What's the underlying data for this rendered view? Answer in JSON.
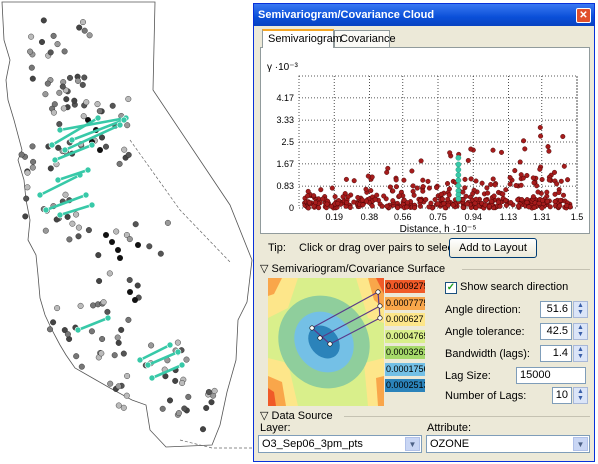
{
  "window": {
    "title": "Semivariogram/Covariance Cloud",
    "close_glyph": "✕",
    "tabs": [
      {
        "label": "Semivariogram",
        "active": true
      },
      {
        "label": "Covariance",
        "active": false
      }
    ]
  },
  "chart_data": {
    "type": "scatter",
    "ylabel": "γ ·10⁻³",
    "xlabel": "Distance, h ·10⁻⁵",
    "y_ticks": [
      "4.17",
      "3.33",
      "2.5",
      "1.67",
      "0.83",
      "0"
    ],
    "x_ticks": [
      "0.19",
      "0.38",
      "0.56",
      "0.75",
      "0.94",
      "1.13",
      "1.31",
      "1.5"
    ],
    "xlim": [
      0,
      1.5
    ],
    "ylim": [
      0,
      5
    ],
    "grid": true,
    "colors": {
      "points": "#a61c1c",
      "selected": "#38c9a8"
    },
    "selected_points": [
      {
        "x": 0.86,
        "y": 1.9
      },
      {
        "x": 0.86,
        "y": 1.65
      },
      {
        "x": 0.86,
        "y": 1.45
      },
      {
        "x": 0.86,
        "y": 1.25
      },
      {
        "x": 0.86,
        "y": 1.05
      },
      {
        "x": 0.86,
        "y": 0.85
      },
      {
        "x": 0.86,
        "y": 0.65
      },
      {
        "x": 0.86,
        "y": 0.5
      },
      {
        "x": 0.86,
        "y": 0.35
      }
    ]
  },
  "tip": {
    "label": "Tip:",
    "text": "Click or drag over pairs to select",
    "button": "Add to Layout"
  },
  "surface": {
    "section_title": "Semivariogram/Covariance Surface",
    "legend": [
      "0.0009279",
      "0.0007775",
      "0.000627",
      "0.0004765",
      "0.0003261",
      "0.0001756",
      "0.0002513"
    ],
    "legend_colors": [
      "#f05a28",
      "#f9a64a",
      "#fde68a",
      "#d9ef8b",
      "#a6d96a",
      "#74c0e6",
      "#2b83ba"
    ],
    "show_search_direction": {
      "label": "Show search direction",
      "checked": true
    },
    "angle_direction": {
      "label": "Angle direction:",
      "value": "51.6"
    },
    "angle_tolerance": {
      "label": "Angle tolerance:",
      "value": "42.5"
    },
    "bandwidth": {
      "label": "Bandwidth (lags):",
      "value": "1.4"
    },
    "lag_size": {
      "label": "Lag Size:",
      "value": "15000"
    },
    "num_lags": {
      "label": "Number of Lags:",
      "value": "10"
    }
  },
  "data_source": {
    "section_title": "Data Source",
    "layer_label": "Layer:",
    "layer_value": "O3_Sep06_3pm_pts",
    "attribute_label": "Attribute:",
    "attribute_value": "OZONE"
  }
}
